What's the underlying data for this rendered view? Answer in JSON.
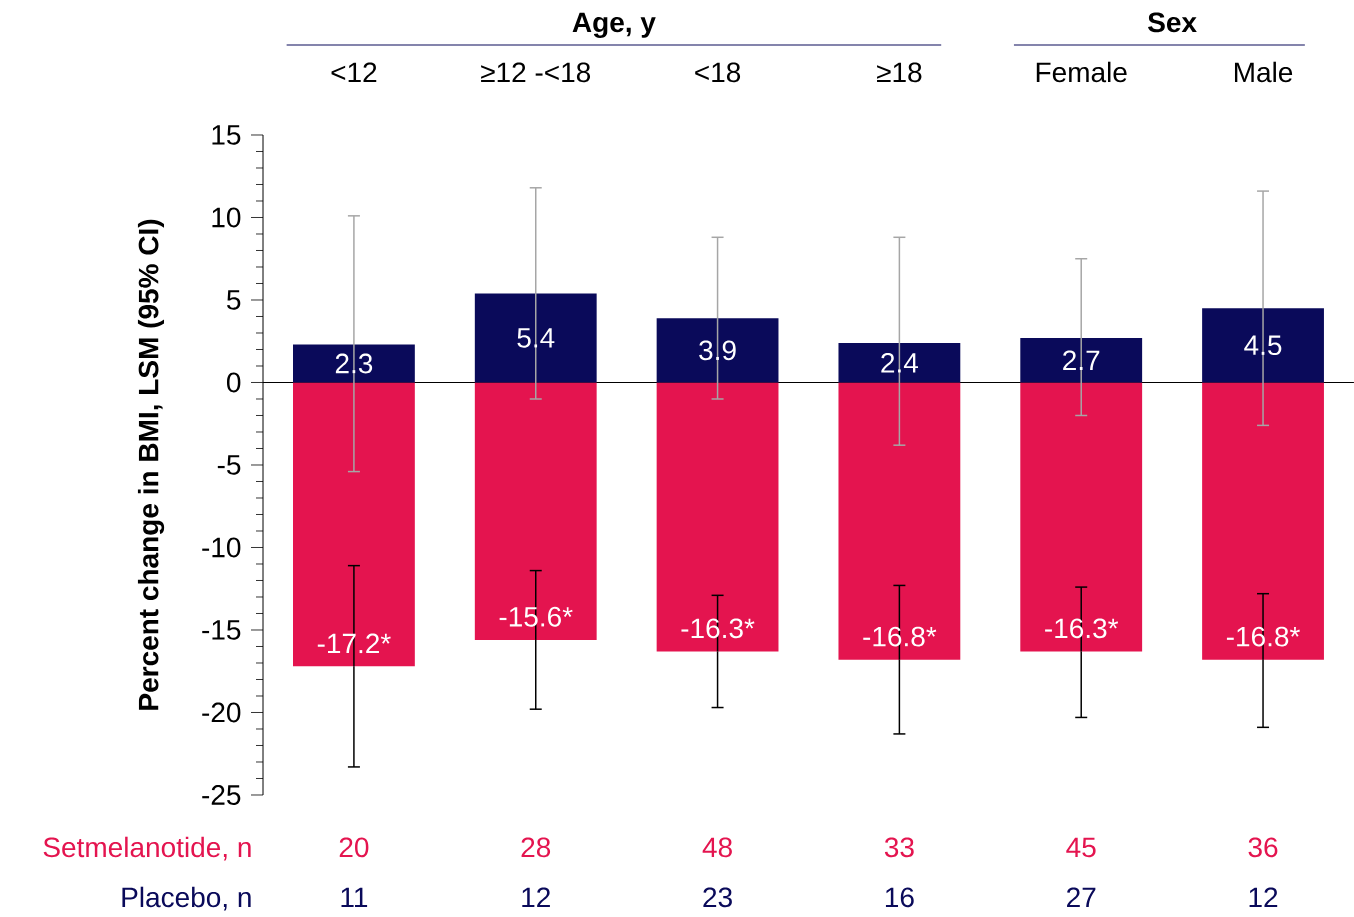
{
  "chart_data": {
    "type": "bar",
    "ylabel": "Percent change in BMI, LSM (95% CI)",
    "stacked": true,
    "categories": [
      "<12",
      "≥12 -<18",
      "<18",
      "≥18",
      "Female",
      "Male"
    ],
    "series": [
      {
        "color": "#e4144f",
        "values": [
          -17.2,
          -15.6,
          -16.3,
          -16.8,
          -16.3,
          -16.8
        ],
        "value_labels": [
          "-17.2*",
          "-15.6*",
          "-16.3*",
          "-16.8*",
          "-16.3*",
          "-16.8*"
        ],
        "errors": [
          [
            -23.3,
            -11.1
          ],
          [
            -19.8,
            -11.4
          ],
          [
            -19.7,
            -12.9
          ],
          [
            -21.3,
            -12.3
          ],
          [
            -20.3,
            -12.4
          ],
          [
            -20.9,
            -12.8
          ]
        ]
      },
      {
        "color": "#0a0a5a",
        "values": [
          2.3,
          5.4,
          3.9,
          2.4,
          2.7,
          4.5
        ],
        "value_labels": [
          "2.3",
          "5.4",
          "3.9",
          "2.4",
          "2.7",
          "4.5"
        ],
        "errors": [
          [
            -5.4,
            10.1
          ],
          [
            -1.0,
            11.8
          ],
          [
            -1.0,
            8.8
          ],
          [
            -3.8,
            8.8
          ],
          [
            -2.0,
            7.5
          ],
          [
            -2.6,
            11.6
          ]
        ]
      }
    ],
    "ylim": [
      -25,
      15
    ],
    "yticks": [
      -25,
      -20,
      -15,
      -10,
      -5,
      0,
      5,
      10,
      15
    ],
    "annotations": [
      "Age, y",
      "Sex",
      "Setmelanotide, n",
      "20",
      "28",
      "48",
      "33",
      "45",
      "36",
      "Placebo, n",
      "11",
      "12",
      "23",
      "16",
      "27",
      "12"
    ]
  }
}
